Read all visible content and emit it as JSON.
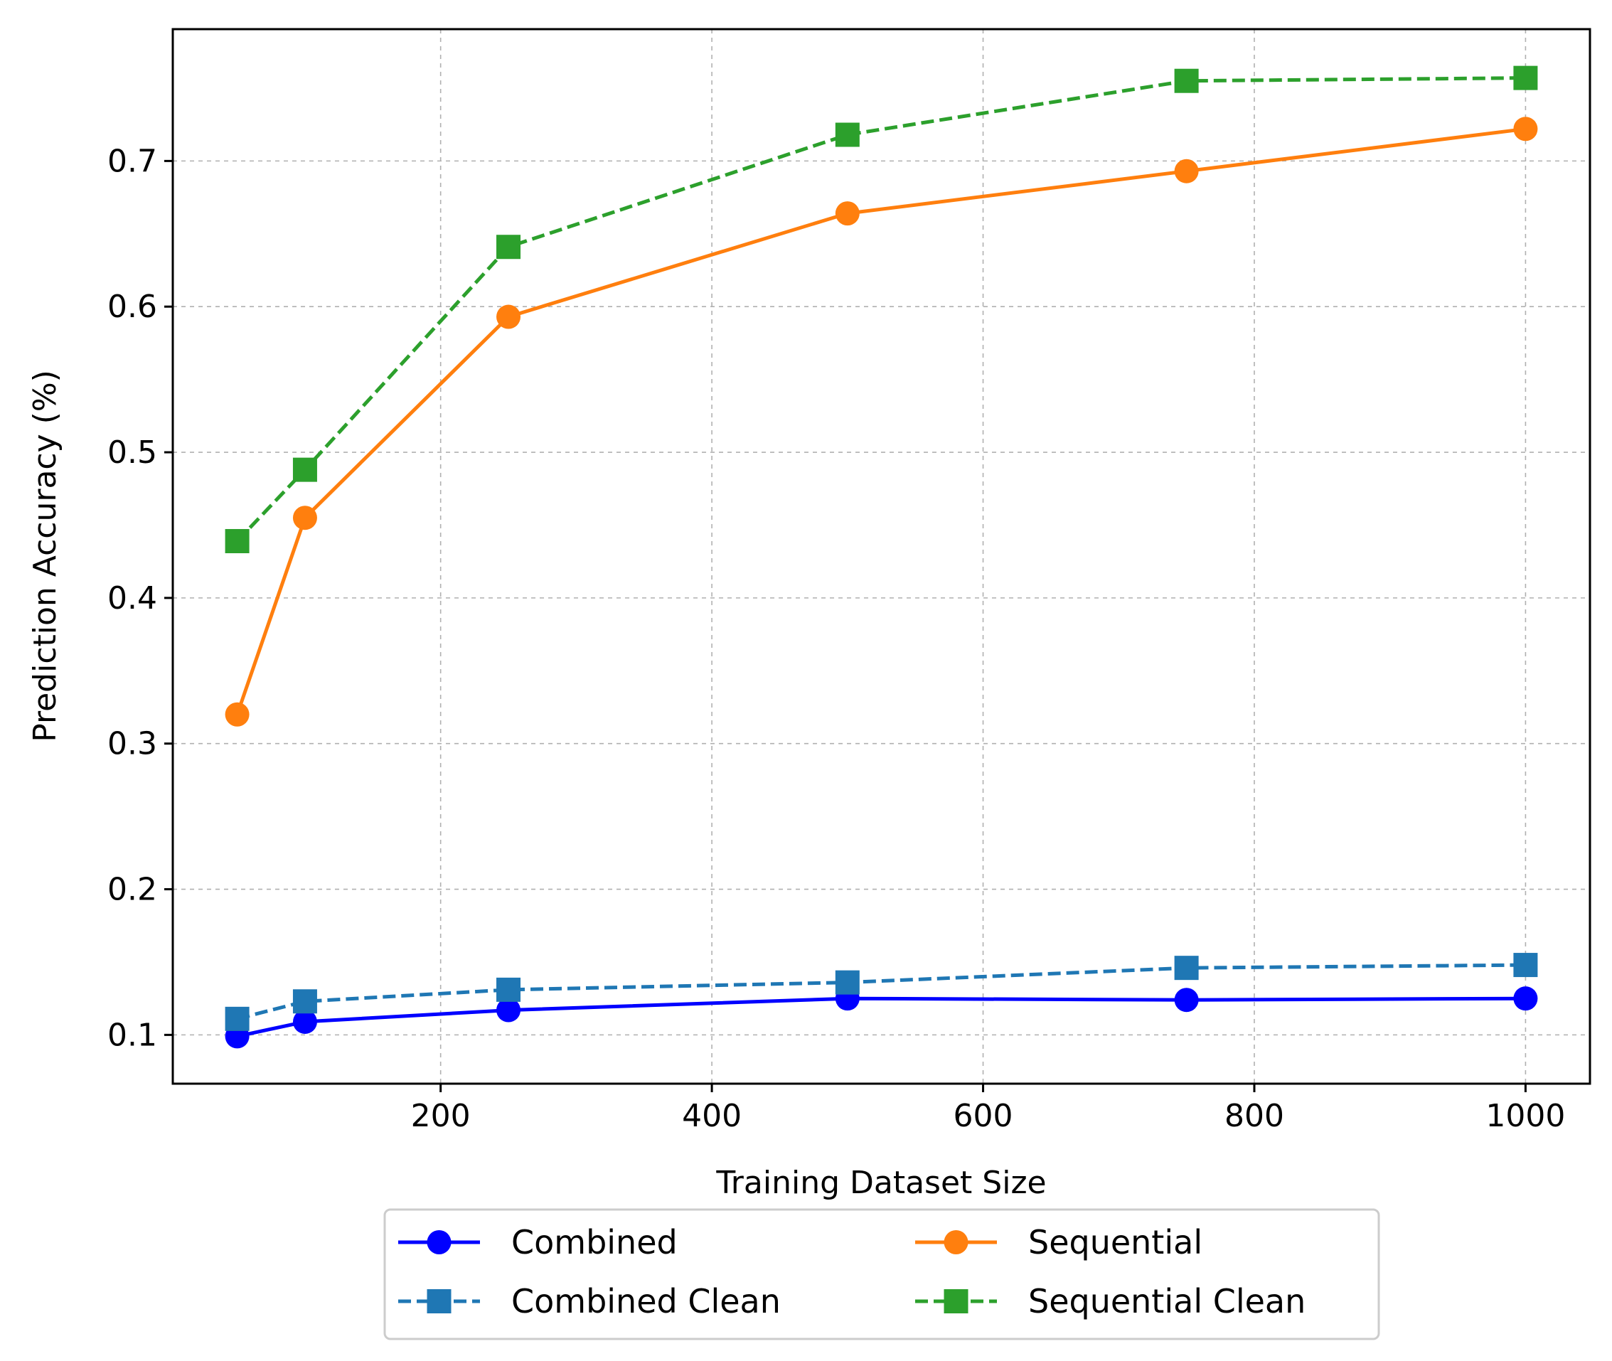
{
  "chart_data": {
    "type": "line",
    "title": "",
    "xlabel": "Training Dataset Size",
    "ylabel": "Prediction Accuracy (%)",
    "xlim": [
      2.5,
      1047.5
    ],
    "ylim": [
      0.0665,
      0.7905
    ],
    "x_ticks": [
      200,
      400,
      600,
      800,
      1000
    ],
    "y_ticks": [
      0.1,
      0.2,
      0.3,
      0.4,
      0.5,
      0.6,
      0.7
    ],
    "x_tick_labels": [
      "200",
      "400",
      "600",
      "800",
      "1000"
    ],
    "y_tick_labels": [
      "0.1",
      "0.2",
      "0.3",
      "0.4",
      "0.5",
      "0.6",
      "0.7"
    ],
    "grid": true,
    "legend_position": "bottom-center (below plot, 2 columns)",
    "x": [
      50,
      100,
      250,
      500,
      750,
      1000
    ],
    "series": [
      {
        "name": "Combined",
        "values": [
          0.099,
          0.109,
          0.117,
          0.125,
          0.124,
          0.125
        ],
        "color": "#0000ff",
        "linestyle": "solid",
        "marker": "circle"
      },
      {
        "name": "Combined Clean",
        "values": [
          0.111,
          0.123,
          0.131,
          0.136,
          0.146,
          0.148
        ],
        "color": "#1f77b4",
        "linestyle": "dashed",
        "marker": "square"
      },
      {
        "name": "Sequential",
        "values": [
          0.32,
          0.455,
          0.593,
          0.664,
          0.693,
          0.722
        ],
        "color": "#ff7f0e",
        "linestyle": "solid",
        "marker": "circle"
      },
      {
        "name": "Sequential Clean",
        "values": [
          0.439,
          0.488,
          0.641,
          0.718,
          0.755,
          0.757
        ],
        "color": "#2ca02c",
        "linestyle": "dashed",
        "marker": "square"
      }
    ]
  }
}
